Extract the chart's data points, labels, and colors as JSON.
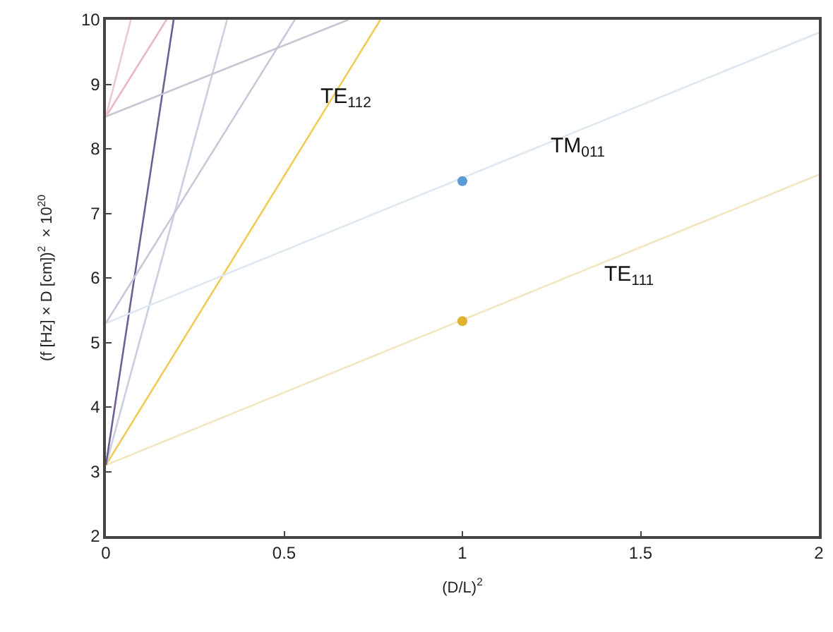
{
  "chart_data": {
    "type": "line",
    "xlabel": "(D/L)$^{2}$",
    "ylabel": "(f [Hz] × D [cm])$^{2}$  × 10$^{20}$",
    "xlim": [
      0,
      2
    ],
    "xticks": [
      0,
      0.5,
      1,
      1.5,
      2
    ],
    "ylim": [
      2,
      10
    ],
    "yticks": [
      2,
      3,
      4,
      5,
      6,
      7,
      8,
      9,
      10
    ],
    "grid": false,
    "line_style": "solid",
    "marker": "none",
    "series": [
      {
        "color": "#f2e6c0",
        "x": [
          0,
          2
        ],
        "values": [
          3.1,
          7.6
        ]
      },
      {
        "color": "#f0cc55",
        "x": [
          0,
          0.77
        ],
        "values": [
          3.1,
          10
        ]
      },
      {
        "color": "#c8d0e0",
        "x": [
          0,
          0.34
        ],
        "values": [
          3.1,
          10
        ]
      },
      {
        "color": "#6f5f95",
        "x": [
          0,
          0.19
        ],
        "values": [
          3.1,
          10
        ]
      },
      {
        "color": "#dde8f0",
        "x": [
          0,
          2
        ],
        "values": [
          5.3,
          9.8
        ]
      },
      {
        "color": "#c8c8d8",
        "x": [
          0,
          0.53
        ],
        "values": [
          5.3,
          10
        ]
      },
      {
        "color": "#c8c4d4",
        "x": [
          0,
          0.68
        ],
        "values": [
          8.5,
          10
        ]
      },
      {
        "color": "#e8b8c8",
        "x": [
          0,
          0.17
        ],
        "values": [
          8.5,
          10
        ]
      },
      {
        "color": "#ecc8d4",
        "x": [
          0,
          0.07
        ],
        "values": [
          8.5,
          10
        ]
      },
      {
        "type": "scatter",
        "marker": "circle",
        "color": "#5b9bd5",
        "x": [
          1
        ],
        "values": [
          7.5
        ]
      },
      {
        "type": "scatter",
        "marker": "circle",
        "color": "#e0b030",
        "x": [
          1
        ],
        "values": [
          5.33
        ]
      }
    ],
    "annotations": [
      "TE$_{112}$",
      "TM$_{011}$",
      "TE$_{111}$"
    ]
  }
}
